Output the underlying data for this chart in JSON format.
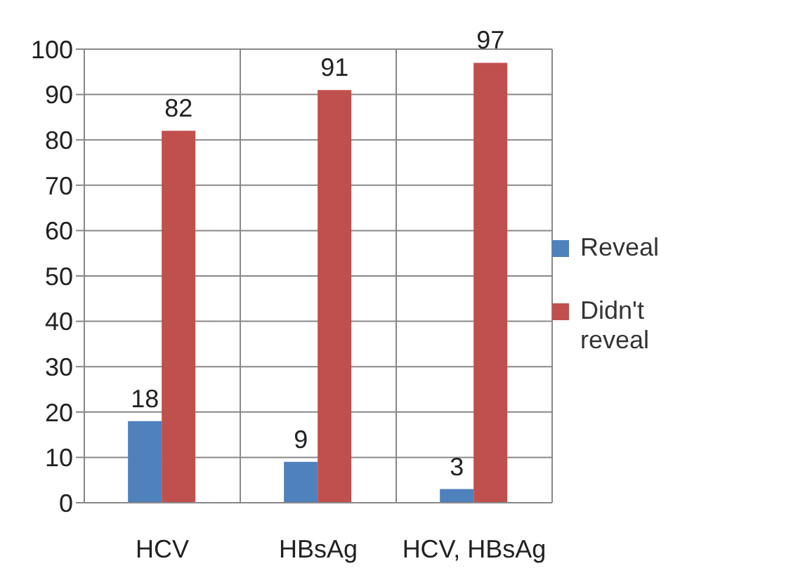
{
  "chart_data": {
    "type": "bar",
    "categories": [
      "HCV",
      "HBsAg",
      "HCV, HBsAg"
    ],
    "series": [
      {
        "name": "Reveal",
        "color": "#4f81bd",
        "values": [
          18,
          9,
          3
        ]
      },
      {
        "name": "Didn't reveal",
        "color": "#c0504d",
        "values": [
          82,
          91,
          97
        ]
      }
    ],
    "ylim": [
      0,
      100
    ],
    "yticks": [
      0,
      10,
      20,
      30,
      40,
      50,
      60,
      70,
      80,
      90,
      100
    ],
    "grid": true,
    "legend": "right",
    "data_labels": true
  }
}
